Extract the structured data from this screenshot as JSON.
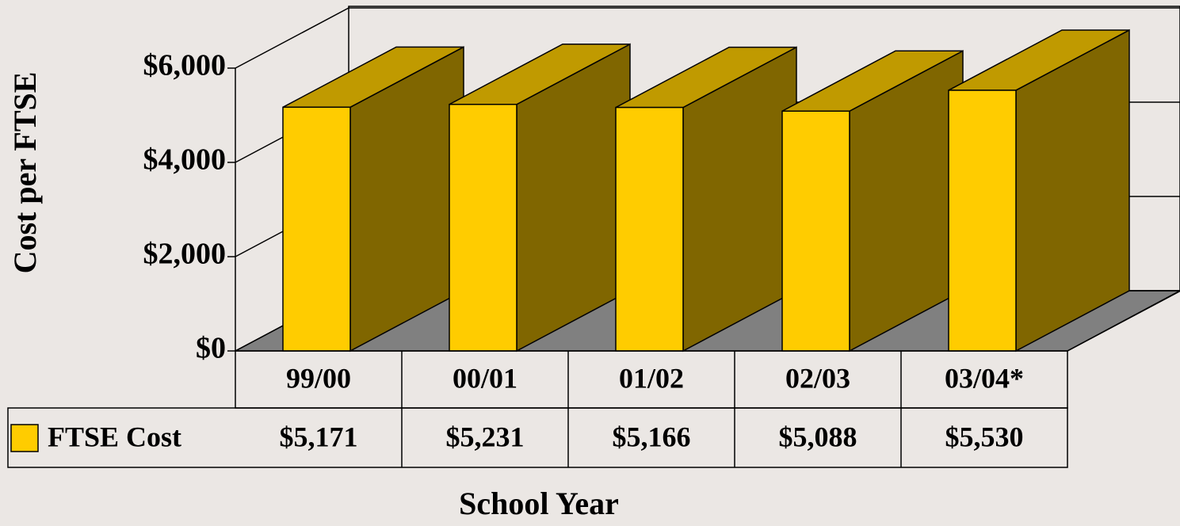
{
  "chart_data": {
    "type": "bar3d",
    "x_label": "School Year",
    "y_label": "Cost per FTSE",
    "categories": [
      "99/00",
      "00/01",
      "01/02",
      "02/03",
      "03/04*"
    ],
    "series": [
      {
        "name": "FTSE Cost",
        "color": "#ffcc00",
        "values": [
          5171,
          5231,
          5166,
          5088,
          5530
        ],
        "value_labels": [
          "$5,171",
          "$5,231",
          "$5,166",
          "$5,088",
          "$5,530"
        ]
      }
    ],
    "ylim": [
      0,
      6000
    ],
    "yticks": [
      {
        "value": 0,
        "label": "$0"
      },
      {
        "value": 2000,
        "label": "$2,000"
      },
      {
        "value": 4000,
        "label": "$4,000"
      },
      {
        "value": 6000,
        "label": "$6,000"
      }
    ],
    "grid": true
  }
}
